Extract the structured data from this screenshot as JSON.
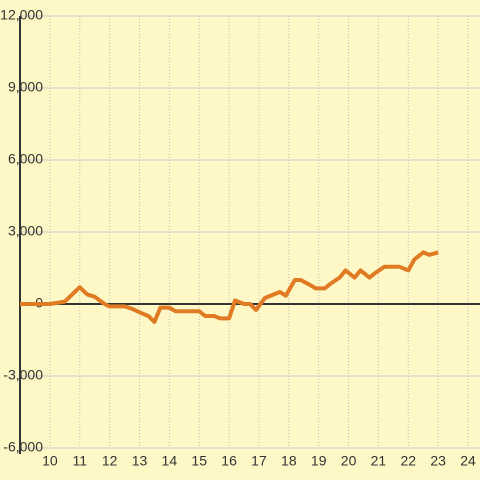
{
  "chart_data": {
    "type": "line",
    "x": [
      9,
      10,
      10.5,
      11,
      11.25,
      11.5,
      11.83,
      12,
      12.5,
      12.75,
      13.1,
      13.3,
      13.5,
      13.7,
      14,
      14.2,
      14.6,
      15,
      15.2,
      15.5,
      15.7,
      16,
      16.2,
      16.5,
      16.7,
      16.9,
      17.2,
      17.5,
      17.7,
      17.9,
      18.2,
      18.4,
      18.7,
      18.9,
      19.2,
      19.4,
      19.7,
      19.9,
      20.2,
      20.4,
      20.7,
      20.9,
      21.2,
      21.5,
      21.7,
      22,
      22.2,
      22.5,
      22.7,
      23
    ],
    "values": [
      0,
      0,
      100,
      700,
      400,
      300,
      0,
      -100,
      -100,
      -200,
      -400,
      -500,
      -750,
      -150,
      -150,
      -300,
      -300,
      -300,
      -500,
      -500,
      -600,
      -600,
      150,
      0,
      0,
      -250,
      250,
      400,
      500,
      350,
      1000,
      1000,
      800,
      650,
      650,
      850,
      1100,
      1400,
      1100,
      1400,
      1100,
      1300,
      1550,
      1550,
      1550,
      1400,
      1850,
      2150,
      2050,
      2150
    ],
    "color": "#e07b24",
    "xlim": [
      9,
      24.4
    ],
    "xticks": [
      10,
      11,
      12,
      13,
      14,
      15,
      16,
      17,
      18,
      19,
      20,
      21,
      22,
      23,
      24
    ],
    "ylim": [
      -6250,
      12000
    ],
    "yticks": [
      {
        "value": -6000,
        "label": "-6,000"
      },
      {
        "value": -3000,
        "label": "-3,000"
      },
      0,
      {
        "value": 3000,
        "label": "3,000"
      },
      {
        "value": 6000,
        "label": "6,000"
      },
      {
        "value": 9000,
        "label": "9,000"
      },
      {
        "value": 12000,
        "label": "12,000"
      }
    ],
    "grid": true
  }
}
